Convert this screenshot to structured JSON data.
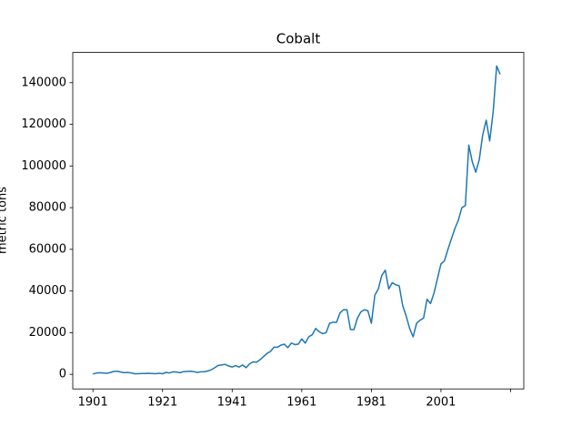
{
  "chart_data": {
    "type": "line",
    "title": "Cobalt",
    "y_label": "metric tons",
    "x": [
      1901,
      1902,
      1903,
      1904,
      1905,
      1906,
      1907,
      1908,
      1909,
      1910,
      1911,
      1912,
      1913,
      1914,
      1915,
      1916,
      1917,
      1918,
      1919,
      1920,
      1921,
      1922,
      1923,
      1924,
      1925,
      1926,
      1927,
      1928,
      1929,
      1930,
      1931,
      1932,
      1933,
      1934,
      1935,
      1936,
      1937,
      1938,
      1939,
      1940,
      1941,
      1942,
      1943,
      1944,
      1945,
      1946,
      1947,
      1948,
      1949,
      1950,
      1951,
      1952,
      1953,
      1954,
      1955,
      1956,
      1957,
      1958,
      1959,
      1960,
      1961,
      1962,
      1963,
      1964,
      1965,
      1966,
      1967,
      1968,
      1969,
      1970,
      1971,
      1972,
      1973,
      1974,
      1975,
      1976,
      1977,
      1978,
      1979,
      1980,
      1981,
      1982,
      1983,
      1984,
      1985,
      1986,
      1987,
      1988,
      1989,
      1990,
      1991,
      1992,
      1993,
      1994,
      1995,
      1996,
      1997,
      1998,
      1999,
      2000,
      2001,
      2002,
      2003,
      2004,
      2005,
      2006,
      2007,
      2008,
      2009,
      2010,
      2011,
      2012,
      2013,
      2014,
      2015,
      2016,
      2017,
      2018
    ],
    "series": [
      {
        "color": "#1f77b4",
        "values": [
          200,
          600,
          800,
          600,
          500,
          900,
          1400,
          1500,
          1100,
          800,
          900,
          700,
          300,
          300,
          400,
          400,
          500,
          400,
          300,
          500,
          300,
          900,
          700,
          1200,
          1100,
          800,
          1300,
          1400,
          1500,
          1300,
          900,
          1200,
          1300,
          1600,
          2200,
          3200,
          4300,
          4500,
          4800,
          4000,
          3500,
          4200,
          3500,
          4500,
          3200,
          5000,
          6000,
          5800,
          7000,
          8500,
          10000,
          11000,
          13000,
          13000,
          14000,
          14500,
          12800,
          15000,
          14300,
          14500,
          17000,
          15000,
          18000,
          19000,
          22000,
          20500,
          19500,
          20000,
          24500,
          25000,
          25000,
          29500,
          31000,
          31000,
          21500,
          21500,
          27000,
          30000,
          31000,
          30500,
          24500,
          38000,
          41000,
          47500,
          50000,
          41000,
          44000,
          43000,
          42500,
          33000,
          28000,
          22000,
          18000,
          24500,
          26000,
          27000,
          36000,
          34000,
          39000,
          46000,
          53000,
          54500,
          60000,
          65000,
          70000,
          74000,
          80000,
          81000,
          110000,
          102000,
          97000,
          103000,
          115000,
          122000,
          112000,
          126000,
          148000,
          144000
        ]
      }
    ],
    "xlim": [
      1895.2,
      2024.8
    ],
    "ylim": [
      -7000,
      154500
    ],
    "xticks": [
      1901,
      1921,
      1941,
      1961,
      1981,
      2001,
      {
        "value": 2021,
        "label": null
      }
    ],
    "yticks": [
      0,
      20000,
      40000,
      60000,
      80000,
      100000,
      120000,
      140000
    ]
  }
}
